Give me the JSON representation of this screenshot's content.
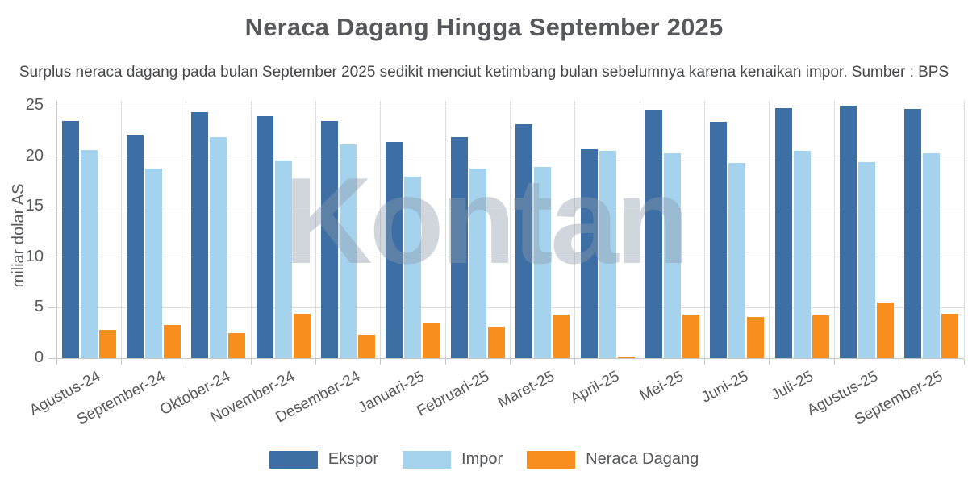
{
  "title": "Neraca Dagang Hingga September 2025",
  "subtitle": "Surplus neraca dagang pada bulan September 2025 sedikit menciut ketimbang bulan sebelumnya karena kenaikan impor. Sumber : BPS",
  "watermark": "Kontan",
  "colors": {
    "ekspor": "#3D6FA5",
    "impor": "#A5D2ED",
    "neraca_dagang": "#F78E1E",
    "grid": "#DDDDDD",
    "axis": "#C6C6C6",
    "title_text": "#57585B",
    "watermark_gray": "#8B9AA8"
  },
  "chart_data": {
    "type": "bar",
    "title": "Neraca Dagang Hingga September 2025",
    "subtitle": "Surplus neraca dagang pada bulan September 2025 sedikit menciut ketimbang bulan sebelumnya karena kenaikan impor. Sumber : BPS",
    "categories": [
      "Agustus-24",
      "September-24",
      "Oktober-24",
      "November-24",
      "Desember-24",
      "Januari-25",
      "Februari-25",
      "Maret-25",
      "April-25",
      "Mei-25",
      "Juni-25",
      "Juli-25",
      "Agustus-25",
      "September-25"
    ],
    "series": [
      {
        "name": "Ekspor",
        "color": "#3D6FA5",
        "values": [
          23.5,
          22.1,
          24.4,
          24.0,
          23.5,
          21.4,
          21.9,
          23.2,
          20.7,
          24.6,
          23.4,
          24.8,
          25.0,
          24.7
        ]
      },
      {
        "name": "Impor",
        "color": "#A5D2ED",
        "values": [
          20.6,
          18.8,
          21.9,
          19.6,
          21.2,
          18.0,
          18.8,
          18.9,
          20.55,
          20.3,
          19.3,
          20.5,
          19.4,
          20.3
        ]
      },
      {
        "name": "Neraca Dagang",
        "color": "#F78E1E",
        "values": [
          2.8,
          3.3,
          2.5,
          4.4,
          2.3,
          3.5,
          3.1,
          4.3,
          0.15,
          4.3,
          4.1,
          4.2,
          5.5,
          4.4
        ]
      }
    ],
    "xlabel": "",
    "ylabel": "miliar dolar AS",
    "ylim": [
      0,
      25
    ],
    "yticks": [
      0,
      5,
      10,
      15,
      20,
      25
    ],
    "grid": true,
    "legend_position": "bottom"
  }
}
